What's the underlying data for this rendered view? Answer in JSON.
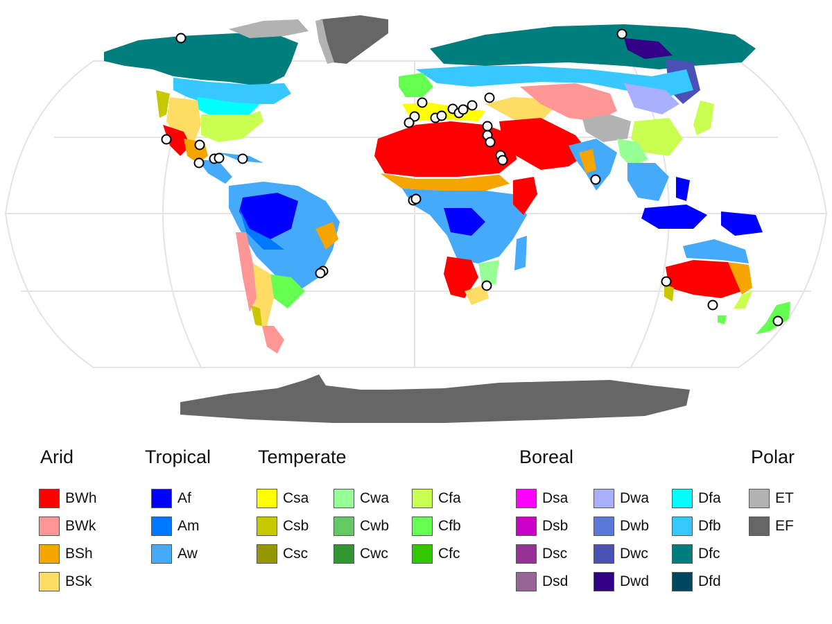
{
  "map": {
    "projection": "Robinson",
    "graticule": true,
    "marker_style": "white circle with black outline",
    "marker_count": 38
  },
  "legend": {
    "groups": [
      {
        "title": "Arid",
        "entries": [
          {
            "code": "BWh",
            "color": "#ff0000"
          },
          {
            "code": "BWk",
            "color": "#ff9696"
          },
          {
            "code": "BSh",
            "color": "#f5a500"
          },
          {
            "code": "BSk",
            "color": "#ffdc64"
          }
        ]
      },
      {
        "title": "Tropical",
        "entries": [
          {
            "code": "Af",
            "color": "#0000ff"
          },
          {
            "code": "Am",
            "color": "#0078ff"
          },
          {
            "code": "Aw",
            "color": "#46aafa"
          }
        ]
      },
      {
        "title": "Temperate",
        "entries": [
          {
            "code": "Csa",
            "color": "#ffff00"
          },
          {
            "code": "Csb",
            "color": "#c8c800"
          },
          {
            "code": "Csc",
            "color": "#969600"
          },
          {
            "code": "Cwa",
            "color": "#96ff96"
          },
          {
            "code": "Cwb",
            "color": "#64c864"
          },
          {
            "code": "Cwc",
            "color": "#329632"
          },
          {
            "code": "Cfa",
            "color": "#c8ff50"
          },
          {
            "code": "Cfb",
            "color": "#64ff50"
          },
          {
            "code": "Cfc",
            "color": "#32c800"
          }
        ]
      },
      {
        "title": "Boreal",
        "entries": [
          {
            "code": "Dsa",
            "color": "#ff00ff"
          },
          {
            "code": "Dsb",
            "color": "#c800c8"
          },
          {
            "code": "Dsc",
            "color": "#963296"
          },
          {
            "code": "Dsd",
            "color": "#966496"
          },
          {
            "code": "Dwa",
            "color": "#aaafff"
          },
          {
            "code": "Dwb",
            "color": "#5a78dc"
          },
          {
            "code": "Dwc",
            "color": "#4b50b4"
          },
          {
            "code": "Dwd",
            "color": "#320087"
          },
          {
            "code": "Dfa",
            "color": "#00ffff"
          },
          {
            "code": "Dfb",
            "color": "#37c8ff"
          },
          {
            "code": "Dfc",
            "color": "#007d7d"
          },
          {
            "code": "Dfd",
            "color": "#00465f"
          }
        ]
      },
      {
        "title": "Polar",
        "entries": [
          {
            "code": "ET",
            "color": "#b2b2b2"
          },
          {
            "code": "EF",
            "color": "#666666"
          }
        ]
      }
    ]
  }
}
